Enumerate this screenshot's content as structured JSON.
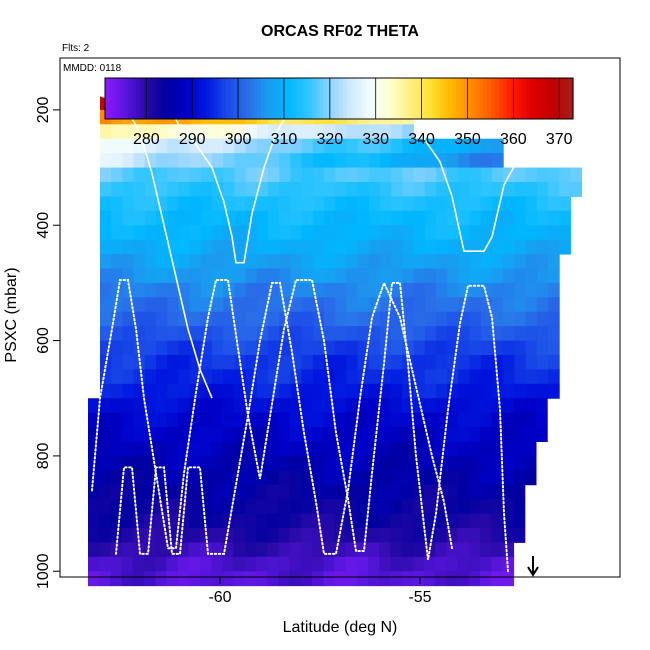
{
  "chart_data": {
    "type": "heatmap",
    "title": "ORCAS RF02 THETA",
    "corner_notes": [
      "Flts: 2",
      "MMDD: 0118"
    ],
    "xlabel": "Latitude (deg N)",
    "ylabel": "PSXC (mbar)",
    "xlim": [
      -64.0,
      -50.0
    ],
    "ylim": [
      1010,
      110
    ],
    "y_reversed": true,
    "x_ticks": [
      -60,
      -55
    ],
    "y_ticks": [
      200,
      400,
      600,
      800,
      1000
    ],
    "colorbar": {
      "range": [
        271,
        373
      ],
      "ticks": [
        280,
        290,
        300,
        310,
        320,
        330,
        340,
        350,
        360,
        370
      ],
      "colors": [
        "#8B1AFF",
        "#5a16e0",
        "#2a0aa8",
        "#0000a0",
        "#0000c8",
        "#0018e0",
        "#1a4ae8",
        "#2a6de8",
        "#1a9cf0",
        "#00b7ff",
        "#2ec4ff",
        "#8ad2ff",
        "#cfe8ff",
        "#f0fbff",
        "#ffffd0",
        "#ffef80",
        "#ffe030",
        "#ffb700",
        "#ff8a00",
        "#ff5a00",
        "#ff1a00",
        "#e00000",
        "#c00000",
        "#a51f1f"
      ]
    },
    "theta_profile": {
      "description_levels_mbar": [
        175,
        200,
        225,
        250,
        275,
        300,
        325,
        350,
        375,
        400,
        425,
        450,
        475,
        500,
        525,
        550,
        575,
        600,
        625,
        650,
        675,
        700,
        725,
        750,
        775,
        800,
        825,
        850,
        875,
        900,
        925,
        950,
        975,
        1000
      ],
      "theta_K": [
        370,
        355,
        335,
        325,
        320,
        318,
        316,
        314,
        312,
        311,
        310,
        308,
        307,
        305,
        303,
        302,
        300,
        298,
        296,
        295,
        294,
        292,
        290,
        289,
        288,
        287,
        286,
        285,
        284,
        283,
        282,
        280,
        278,
        276
      ]
    },
    "flight_tracks": [
      {
        "style": "solid",
        "points": [
          [
            -63.0,
            175
          ],
          [
            -61.8,
            175
          ],
          [
            -61.3,
            190
          ],
          [
            -61.0,
            230
          ],
          [
            -60.6,
            260
          ],
          [
            -60.2,
            300
          ],
          [
            -59.9,
            360
          ],
          [
            -59.7,
            420
          ],
          [
            -59.6,
            465
          ],
          [
            -59.4,
            465
          ],
          [
            -59.2,
            380
          ],
          [
            -58.9,
            300
          ],
          [
            -58.6,
            240
          ],
          [
            -58.2,
            195
          ],
          [
            -57.9,
            175
          ],
          [
            -55.7,
            175
          ],
          [
            -55.3,
            200
          ],
          [
            -55.0,
            240
          ],
          [
            -54.5,
            290
          ],
          [
            -54.2,
            350
          ],
          [
            -53.9,
            445
          ],
          [
            -53.4,
            445
          ],
          [
            -53.2,
            420
          ],
          [
            -52.9,
            330
          ],
          [
            -52.5,
            280
          ],
          [
            -51.2,
            280
          ],
          [
            -50.6,
            300
          ],
          [
            -50.0,
            300
          ]
        ]
      },
      {
        "style": "solid",
        "points": [
          [
            -63.0,
            175
          ],
          [
            -62.4,
            190
          ],
          [
            -62.0,
            240
          ],
          [
            -61.7,
            310
          ],
          [
            -61.4,
            400
          ],
          [
            -61.1,
            490
          ],
          [
            -60.8,
            580
          ],
          [
            -60.5,
            650
          ],
          [
            -60.2,
            700
          ]
        ]
      },
      {
        "style": "dotted",
        "points": [
          [
            -63.2,
            860
          ],
          [
            -63.0,
            700
          ],
          [
            -62.7,
            580
          ],
          [
            -62.5,
            495
          ],
          [
            -62.3,
            495
          ],
          [
            -62.1,
            580
          ],
          [
            -61.9,
            700
          ],
          [
            -61.6,
            830
          ],
          [
            -61.3,
            960
          ],
          [
            -61.1,
            960
          ],
          [
            -60.9,
            830
          ],
          [
            -60.6,
            690
          ],
          [
            -60.3,
            560
          ],
          [
            -60.1,
            495
          ],
          [
            -59.8,
            495
          ],
          [
            -59.6,
            590
          ],
          [
            -59.3,
            730
          ],
          [
            -59.0,
            840
          ],
          [
            -58.7,
            710
          ],
          [
            -58.4,
            580
          ],
          [
            -58.1,
            495
          ],
          [
            -57.7,
            495
          ],
          [
            -57.4,
            600
          ],
          [
            -57.1,
            760
          ],
          [
            -56.8,
            875
          ],
          [
            -56.6,
            965
          ],
          [
            -56.4,
            965
          ],
          [
            -56.2,
            830
          ],
          [
            -55.9,
            640
          ],
          [
            -55.7,
            500
          ],
          [
            -55.5,
            500
          ],
          [
            -55.3,
            640
          ],
          [
            -55.1,
            800
          ],
          [
            -54.9,
            920
          ],
          [
            -54.8,
            980
          ],
          [
            -54.6,
            900
          ],
          [
            -54.3,
            720
          ],
          [
            -54.0,
            570
          ],
          [
            -53.8,
            505
          ],
          [
            -53.4,
            505
          ],
          [
            -53.2,
            560
          ],
          [
            -53.0,
            720
          ],
          [
            -52.9,
            900
          ],
          [
            -52.8,
            1000
          ]
        ]
      },
      {
        "style": "dotted",
        "points": [
          [
            -62.6,
            970
          ],
          [
            -62.4,
            820
          ],
          [
            -62.2,
            820
          ],
          [
            -62.0,
            970
          ],
          [
            -61.8,
            970
          ],
          [
            -61.6,
            820
          ],
          [
            -61.4,
            820
          ],
          [
            -61.2,
            970
          ],
          [
            -61.0,
            970
          ],
          [
            -60.8,
            820
          ],
          [
            -60.5,
            820
          ],
          [
            -60.3,
            970
          ],
          [
            -59.9,
            970
          ],
          [
            -59.6,
            850
          ],
          [
            -59.3,
            730
          ],
          [
            -59.0,
            600
          ],
          [
            -58.7,
            500
          ],
          [
            -58.5,
            500
          ],
          [
            -58.2,
            620
          ],
          [
            -57.9,
            760
          ],
          [
            -57.6,
            880
          ],
          [
            -57.4,
            970
          ],
          [
            -57.1,
            970
          ],
          [
            -56.8,
            860
          ],
          [
            -56.5,
            700
          ],
          [
            -56.2,
            560
          ],
          [
            -55.9,
            500
          ],
          [
            -55.5,
            560
          ],
          [
            -55.1,
            680
          ],
          [
            -54.7,
            800
          ],
          [
            -54.4,
            880
          ],
          [
            -54.2,
            960
          ]
        ]
      }
    ]
  }
}
